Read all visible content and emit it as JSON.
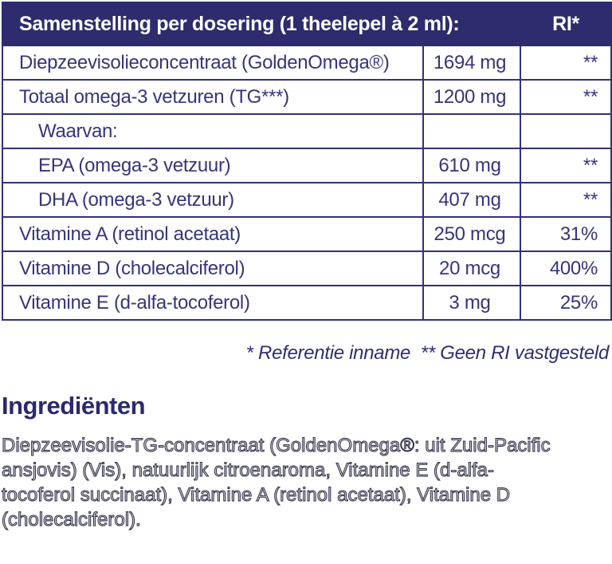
{
  "table": {
    "header": {
      "title": "Samenstelling per dosering (1 theelepel à 2 ml):",
      "ri_label": "RI*"
    },
    "rows": [
      {
        "label": "Diepzeevisolieconcentraat (GoldenOmega®)",
        "amount": "1694 mg",
        "ri": "**"
      },
      {
        "label": "Totaal omega-3 vetzuren (TG***)",
        "amount": "1200 mg",
        "ri": "**"
      },
      {
        "label": "Waarvan:",
        "amount": "",
        "ri": ""
      },
      {
        "label": "EPA (omega-3 vetzuur)",
        "amount": "610 mg",
        "ri": "**"
      },
      {
        "label": "DHA (omega-3 vetzuur)",
        "amount": "407 mg",
        "ri": "**"
      },
      {
        "label": "Vitamine A (retinol acetaat)",
        "amount": "250 mcg",
        "ri": "31%"
      },
      {
        "label": "Vitamine D (cholecalciferol)",
        "amount": "20 mcg",
        "ri": "400%"
      },
      {
        "label": "Vitamine E (d-alfa-tocoferol)",
        "amount": "3 mg",
        "ri": "25%"
      }
    ]
  },
  "footnote": "* Referentie inname  ** Geen RI vastgesteld",
  "ingredients": {
    "heading": "Ingrediënten",
    "lines": [
      "Diepzeevisolie-TG-concentraat (GoldenOmega®: uit Zuid-Pacific",
      "ansjovis) (Vis), natuurlijk citroenaroma, Vitamine E (d-alfa-",
      "tocoferol succinaat), Vitamine A (retinol acetaat), Vitamine D",
      "(cholecalciferol)."
    ]
  },
  "colors": {
    "header_background": "#2e2c6e",
    "table_border": "#32327a",
    "table_text": "#35357c",
    "heading_text": "#2b2a6b",
    "header_text": "#ffffff"
  }
}
